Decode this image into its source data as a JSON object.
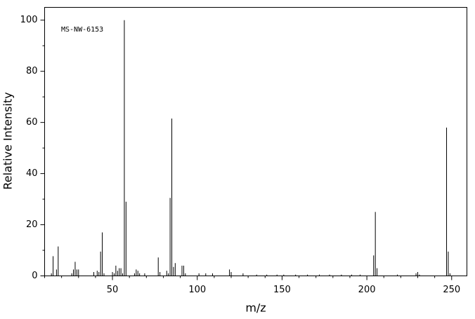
{
  "chart_data": {
    "type": "stem",
    "annotation": "MS-NW-6153",
    "xlabel": "m/z",
    "ylabel": "Relative Intensity",
    "x": [
      14,
      15,
      17,
      18,
      26,
      27,
      28,
      29,
      30,
      39,
      41,
      42,
      43,
      44,
      45,
      50,
      51,
      52,
      53,
      54,
      55,
      56,
      57,
      58,
      63,
      64,
      65,
      66,
      69,
      77,
      78,
      82,
      83,
      84,
      85,
      86,
      87,
      91,
      92,
      93,
      101,
      105,
      109,
      119,
      120,
      127,
      135,
      141,
      147,
      151,
      158,
      165,
      172,
      178,
      185,
      191,
      196,
      204,
      205,
      206,
      218,
      229,
      230,
      231,
      247,
      248,
      249
    ],
    "values": [
      1,
      7.7,
      2.5,
      11.5,
      1,
      2.5,
      5.5,
      2.5,
      2.5,
      1.5,
      2,
      1.5,
      9.5,
      17,
      1,
      1.5,
      1,
      4,
      2,
      3,
      3,
      1,
      100,
      29,
      1,
      2.5,
      2,
      1,
      1,
      7.2,
      1.5,
      2,
      1,
      30.5,
      61.5,
      3.5,
      5,
      4,
      4,
      1,
      1,
      1,
      1,
      2.5,
      1.5,
      1,
      0.5,
      0.5,
      0.5,
      0.5,
      0.5,
      0.5,
      0.5,
      0.5,
      0.5,
      0.5,
      0.5,
      8,
      25,
      3,
      0.5,
      1,
      1.5,
      0.5,
      58,
      9.5,
      1
    ],
    "color": "#000000",
    "xlim": [
      10,
      259
    ],
    "xticks": [
      50,
      100,
      150,
      200,
      250
    ],
    "xminorticks": [
      10,
      20,
      30,
      40,
      60,
      70,
      80,
      90,
      110,
      120,
      130,
      140,
      160,
      170,
      180,
      190,
      210,
      220,
      230,
      240
    ],
    "ylim": [
      0,
      105
    ],
    "yticks": [
      0,
      20,
      40,
      60,
      80,
      100
    ],
    "yminorticks": [
      10,
      30,
      50,
      70,
      90
    ]
  }
}
